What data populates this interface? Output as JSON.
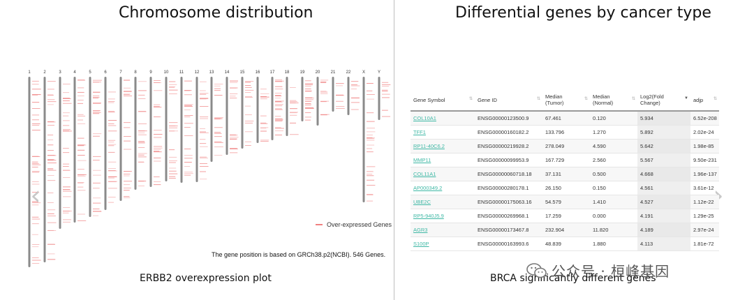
{
  "left_panel": {
    "title": "Chromosome distribution",
    "caption": "ERBB2 overexpression plot",
    "note": "The gene position is based on GRCh38.p2(NCBI). 546 Genes.",
    "legend_label": "Over-expressed Genes",
    "chromosomes": [
      "1",
      "2",
      "3",
      "4",
      "5",
      "6",
      "7",
      "8",
      "9",
      "10",
      "11",
      "12",
      "13",
      "14",
      "15",
      "16",
      "17",
      "18",
      "19",
      "20",
      "21",
      "22",
      "X",
      "Y"
    ]
  },
  "right_panel": {
    "title": "Differential genes by cancer type",
    "caption": "BRCA significantly different genes",
    "table": {
      "columns": [
        {
          "label": "Gene Symbol",
          "sort": "none"
        },
        {
          "label": "Gene ID",
          "sort": "none"
        },
        {
          "label": "Median\n(Tumor)",
          "sort": "none"
        },
        {
          "label": "Median\n(Normal)",
          "sort": "none"
        },
        {
          "label": "Log2(Fold\nChange)",
          "sort": "desc"
        },
        {
          "label": "adjp",
          "sort": "none"
        }
      ],
      "rows": [
        [
          "COL10A1",
          "ENSG00000123500.9",
          "67.461",
          "0.120",
          "5.934",
          "6.52e-208"
        ],
        [
          "TFF1",
          "ENSG00000160182.2",
          "133.796",
          "1.270",
          "5.892",
          "2.02e-24"
        ],
        [
          "RP11-40C6.2",
          "ENSG00000219928.2",
          "278.049",
          "4.590",
          "5.642",
          "1.98e-85"
        ],
        [
          "MMP11",
          "ENSG00000099953.9",
          "167.729",
          "2.560",
          "5.567",
          "9.50e-231"
        ],
        [
          "COL11A1",
          "ENSG00000060718.18",
          "37.131",
          "0.500",
          "4.668",
          "1.96e-137"
        ],
        [
          "AP000349.2",
          "ENSG00000280178.1",
          "26.150",
          "0.150",
          "4.561",
          "3.61e-12"
        ],
        [
          "UBE2C",
          "ENSG00000175063.16",
          "54.579",
          "1.410",
          "4.527",
          "1.12e-22"
        ],
        [
          "RP5-940J5.9",
          "ENSG00000269968.1",
          "17.259",
          "0.000",
          "4.191",
          "1.29e-25"
        ],
        [
          "AGR3",
          "ENSG00000173467.8",
          "232.904",
          "11.820",
          "4.189",
          "2.97e-24"
        ],
        [
          "S100P",
          "ENSG00000163993.6",
          "48.839",
          "1.880",
          "4.113",
          "1.81e-72"
        ]
      ]
    }
  },
  "watermark": "公众号 · 桓峰基因",
  "colors": {
    "gene_mark": "#f08080",
    "link": "#3fb8a5",
    "chromosome": "#8a8a8a"
  },
  "icons": {
    "prev": "chevron-left-icon",
    "next": "chevron-right-icon",
    "watermark": "wechat-icon"
  }
}
